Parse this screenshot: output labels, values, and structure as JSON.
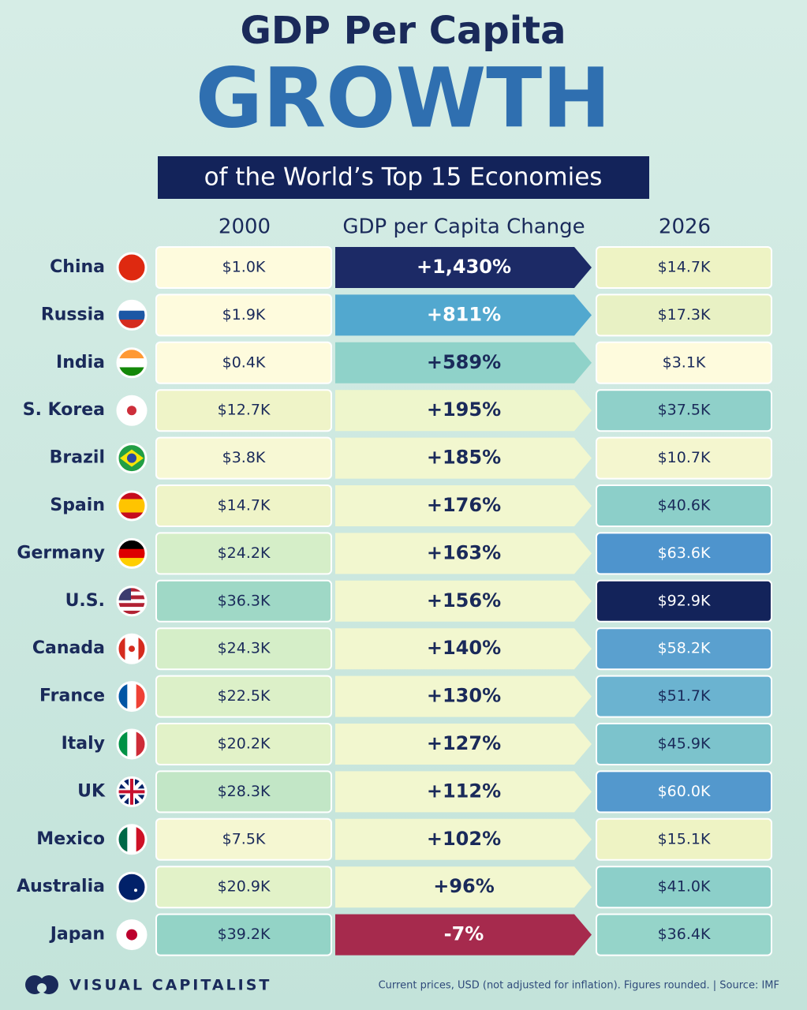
{
  "header": {
    "title": "GDP Per Capita",
    "headline": "GROWTH",
    "subtitle": "of the World’s Top 15 Economies"
  },
  "table": {
    "columns": [
      "2000",
      "GDP per Capita Change",
      "2026"
    ],
    "rows": [
      {
        "country": "China",
        "cells": [
          "$1.0K",
          "+1,430%",
          "$14.7K"
        ],
        "colors": [
          "#fefbdd",
          "#1c2a66",
          "#eef3c4"
        ]
      },
      {
        "country": "Russia",
        "cells": [
          "$1.9K",
          "+811%",
          "$17.3K"
        ],
        "colors": [
          "#fefbdd",
          "#52a8cf",
          "#e8f1c4"
        ]
      },
      {
        "country": "India",
        "cells": [
          "$0.4K",
          "+589%",
          "$3.1K"
        ],
        "colors": [
          "#fefbdd",
          "#8fd2c9",
          "#fefbdd"
        ]
      },
      {
        "country": "S. Korea",
        "cells": [
          "$12.7K",
          "+195%",
          "$37.5K"
        ],
        "colors": [
          "#eff4c8",
          "#eef6cc",
          "#8fd0c9"
        ]
      },
      {
        "country": "Brazil",
        "cells": [
          "$3.8K",
          "+185%",
          "$10.7K"
        ],
        "colors": [
          "#f7f8d4",
          "#f2f7cf",
          "#f4f6cf"
        ]
      },
      {
        "country": "Spain",
        "cells": [
          "$14.7K",
          "+176%",
          "$40.6K"
        ],
        "colors": [
          "#eff4c8",
          "#f2f7cf",
          "#8ccfc9"
        ]
      },
      {
        "country": "Germany",
        "cells": [
          "$24.2K",
          "+163%",
          "$63.6K"
        ],
        "colors": [
          "#d5eec8",
          "#f2f7cf",
          "#4e94cd"
        ]
      },
      {
        "country": "U.S.",
        "cells": [
          "$36.3K",
          "+156%",
          "$92.9K"
        ],
        "colors": [
          "#9fd8c6",
          "#f2f7cf",
          "#13235a"
        ]
      },
      {
        "country": "Canada",
        "cells": [
          "$24.3K",
          "+140%",
          "$58.2K"
        ],
        "colors": [
          "#d5eec8",
          "#f2f7cf",
          "#5aa0cf"
        ]
      },
      {
        "country": "France",
        "cells": [
          "$22.5K",
          "+130%",
          "$51.7K"
        ],
        "colors": [
          "#dcf0c8",
          "#f2f7cf",
          "#6bb3d0"
        ]
      },
      {
        "country": "Italy",
        "cells": [
          "$20.2K",
          "+127%",
          "$45.9K"
        ],
        "colors": [
          "#e2f2c8",
          "#f2f7cf",
          "#7cc3cc"
        ]
      },
      {
        "country": "UK",
        "cells": [
          "$28.3K",
          "+112%",
          "$60.0K"
        ],
        "colors": [
          "#c2e6c6",
          "#f2f7cf",
          "#5398cd"
        ]
      },
      {
        "country": "Mexico",
        "cells": [
          "$7.5K",
          "+102%",
          "$15.1K"
        ],
        "colors": [
          "#f5f7d2",
          "#f2f7cf",
          "#eef3c4"
        ]
      },
      {
        "country": "Australia",
        "cells": [
          "$20.9K",
          "+96%",
          "$41.0K"
        ],
        "colors": [
          "#e2f2c8",
          "#f2f7cf",
          "#8ccfc9"
        ]
      },
      {
        "country": "Japan",
        "cells": [
          "$39.2K",
          "-7%",
          "$36.4K"
        ],
        "colors": [
          "#93d3c6",
          "#a62a4d",
          "#95d4c9"
        ]
      }
    ]
  },
  "footer": {
    "brand": "VISUAL CAPITALIST",
    "note": "Current prices, USD (not adjusted for inflation). Figures rounded. | Source: IMF"
  }
}
